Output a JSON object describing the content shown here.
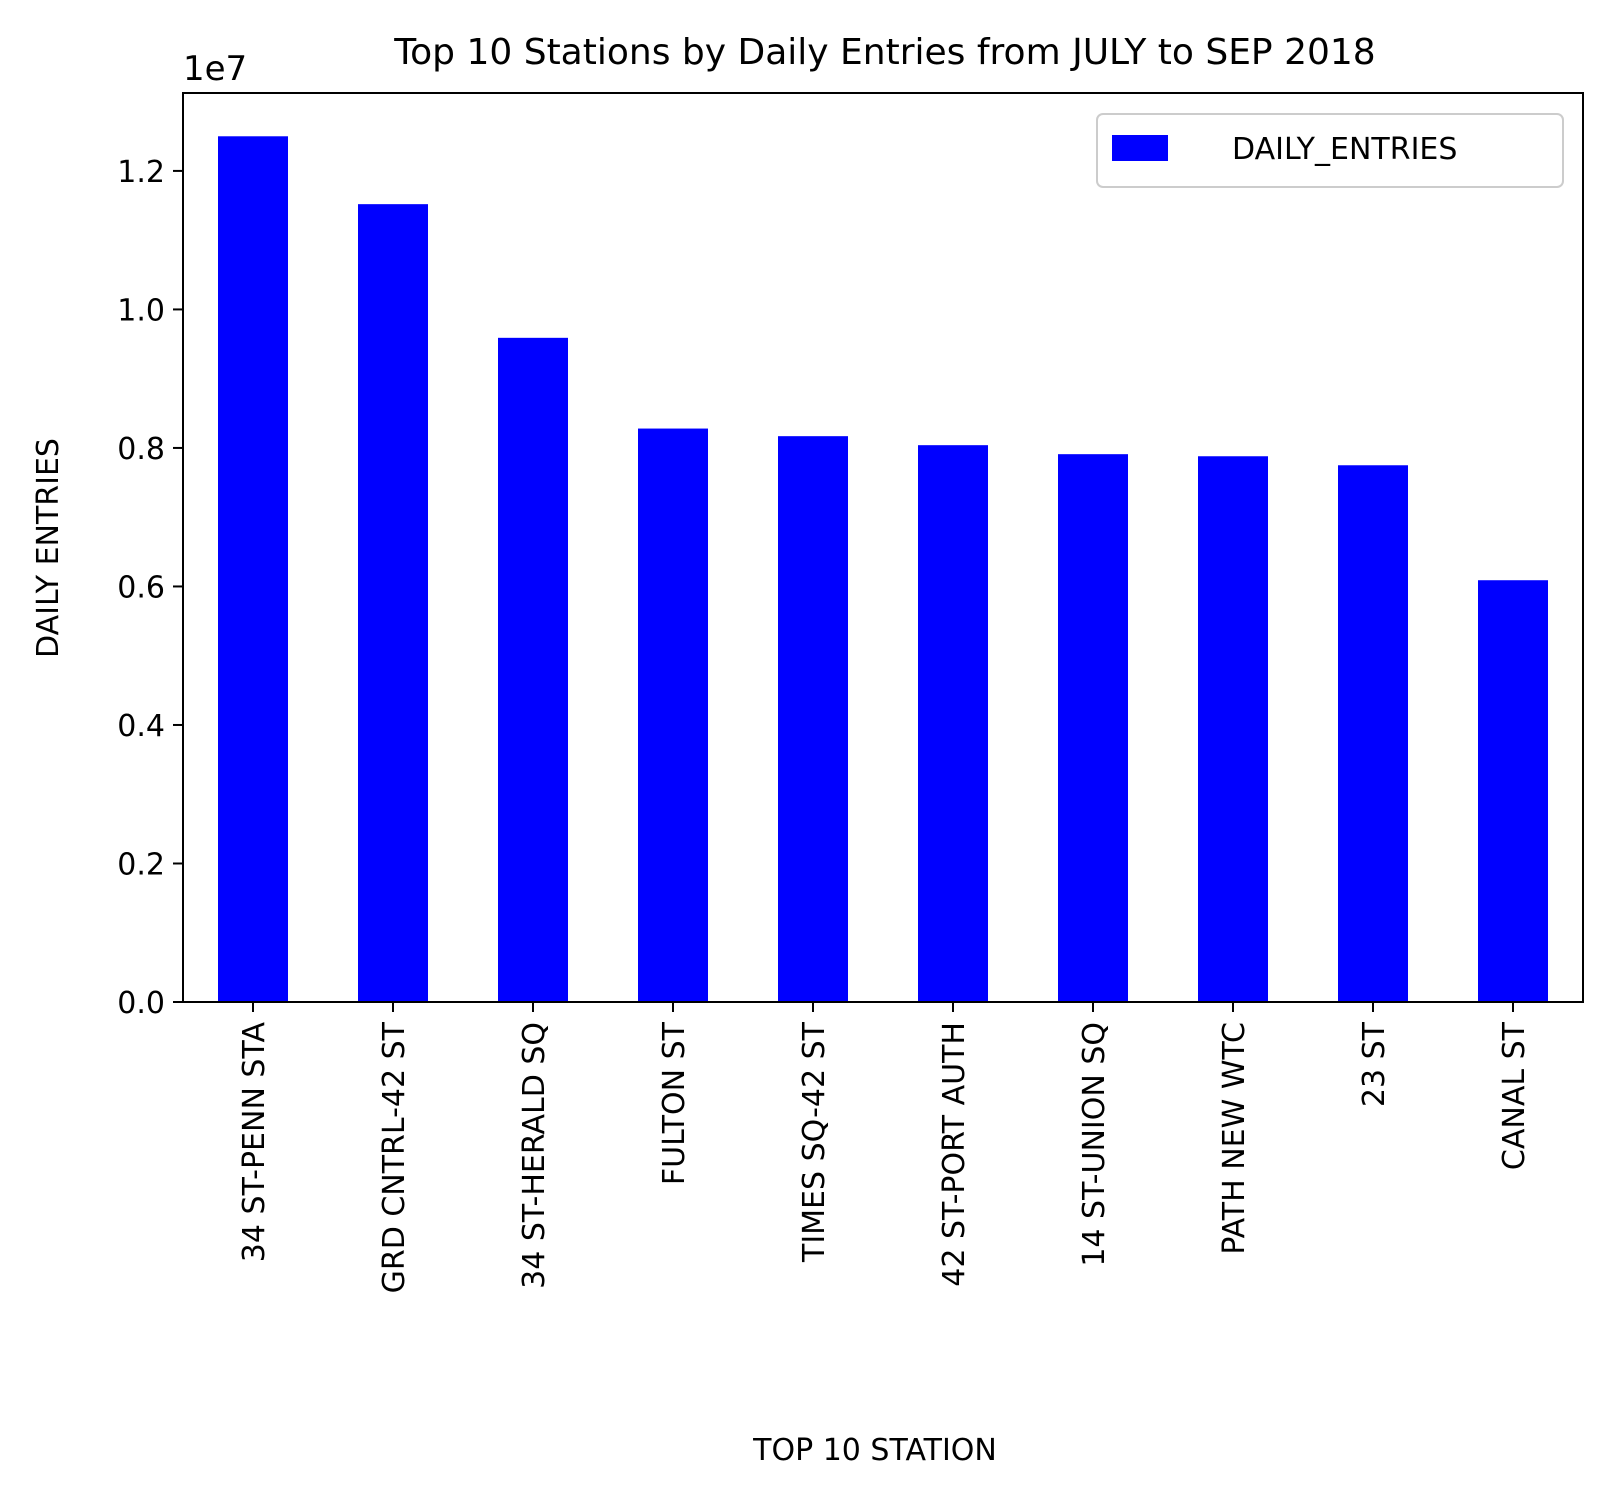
{
  "chart_data": {
    "type": "bar",
    "title": "Top 10 Stations by Daily Entries from JULY to SEP 2018",
    "xlabel": "TOP 10 STATION",
    "ylabel": "DAILY ENTRIES",
    "offset_label": "1e7",
    "categories": [
      "34 ST-PENN STA",
      "GRD CNTRL-42 ST",
      "34 ST-HERALD SQ",
      "FULTON ST",
      "TIMES SQ-42 ST",
      "42 ST-PORT AUTH",
      "14 ST-UNION SQ",
      "PATH NEW WTC",
      "23 ST",
      "CANAL ST"
    ],
    "series": [
      {
        "name": "DAILY_ENTRIES",
        "values": [
          12500000,
          11520000,
          9590000,
          8280000,
          8170000,
          8040000,
          7910000,
          7880000,
          7750000,
          6090000
        ],
        "color": "#0000ff"
      }
    ],
    "yticks": [
      0,
      2000000,
      4000000,
      6000000,
      8000000,
      10000000,
      12000000
    ],
    "ytick_labels": [
      "0.0",
      "0.2",
      "0.4",
      "0.6",
      "0.8",
      "1.0",
      "1.2"
    ],
    "ylim": [
      0,
      13125000
    ],
    "grid": false,
    "legend": "top-right"
  }
}
